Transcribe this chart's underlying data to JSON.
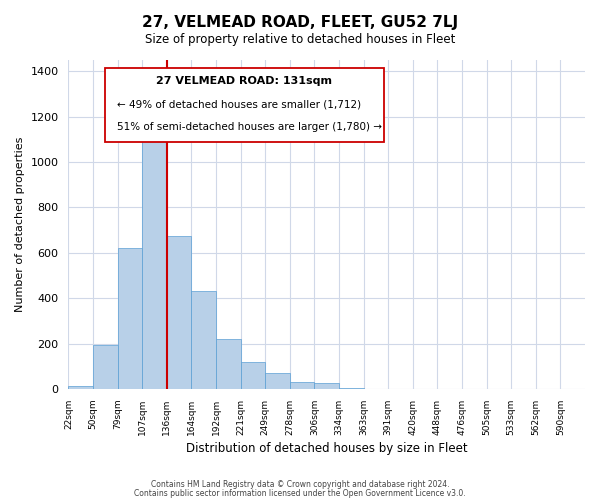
{
  "title": "27, VELMEAD ROAD, FLEET, GU52 7LJ",
  "subtitle": "Size of property relative to detached houses in Fleet",
  "xlabel": "Distribution of detached houses by size in Fleet",
  "ylabel": "Number of detached properties",
  "footer_line1": "Contains HM Land Registry data © Crown copyright and database right 2024.",
  "footer_line2": "Contains public sector information licensed under the Open Government Licence v3.0.",
  "annotation_title": "27 VELMEAD ROAD: 131sqm",
  "annotation_line1": "← 49% of detached houses are smaller (1,712)",
  "annotation_line2": "51% of semi-detached houses are larger (1,780) →",
  "bin_labels": [
    "22sqm",
    "50sqm",
    "79sqm",
    "107sqm",
    "136sqm",
    "164sqm",
    "192sqm",
    "221sqm",
    "249sqm",
    "278sqm",
    "306sqm",
    "334sqm",
    "363sqm",
    "391sqm",
    "420sqm",
    "448sqm",
    "476sqm",
    "505sqm",
    "533sqm",
    "562sqm",
    "590sqm"
  ],
  "bar_values": [
    15,
    195,
    620,
    1105,
    675,
    430,
    220,
    120,
    70,
    30,
    25,
    5,
    2,
    1,
    0,
    0,
    0,
    0,
    0,
    0
  ],
  "bar_color": "#b8d0e8",
  "bar_edge_color": "#5a9fd4",
  "vline_x_index": 4,
  "vline_color": "#cc0000",
  "ylim": [
    0,
    1450
  ],
  "background_color": "#ffffff",
  "grid_color": "#d0d8e8"
}
